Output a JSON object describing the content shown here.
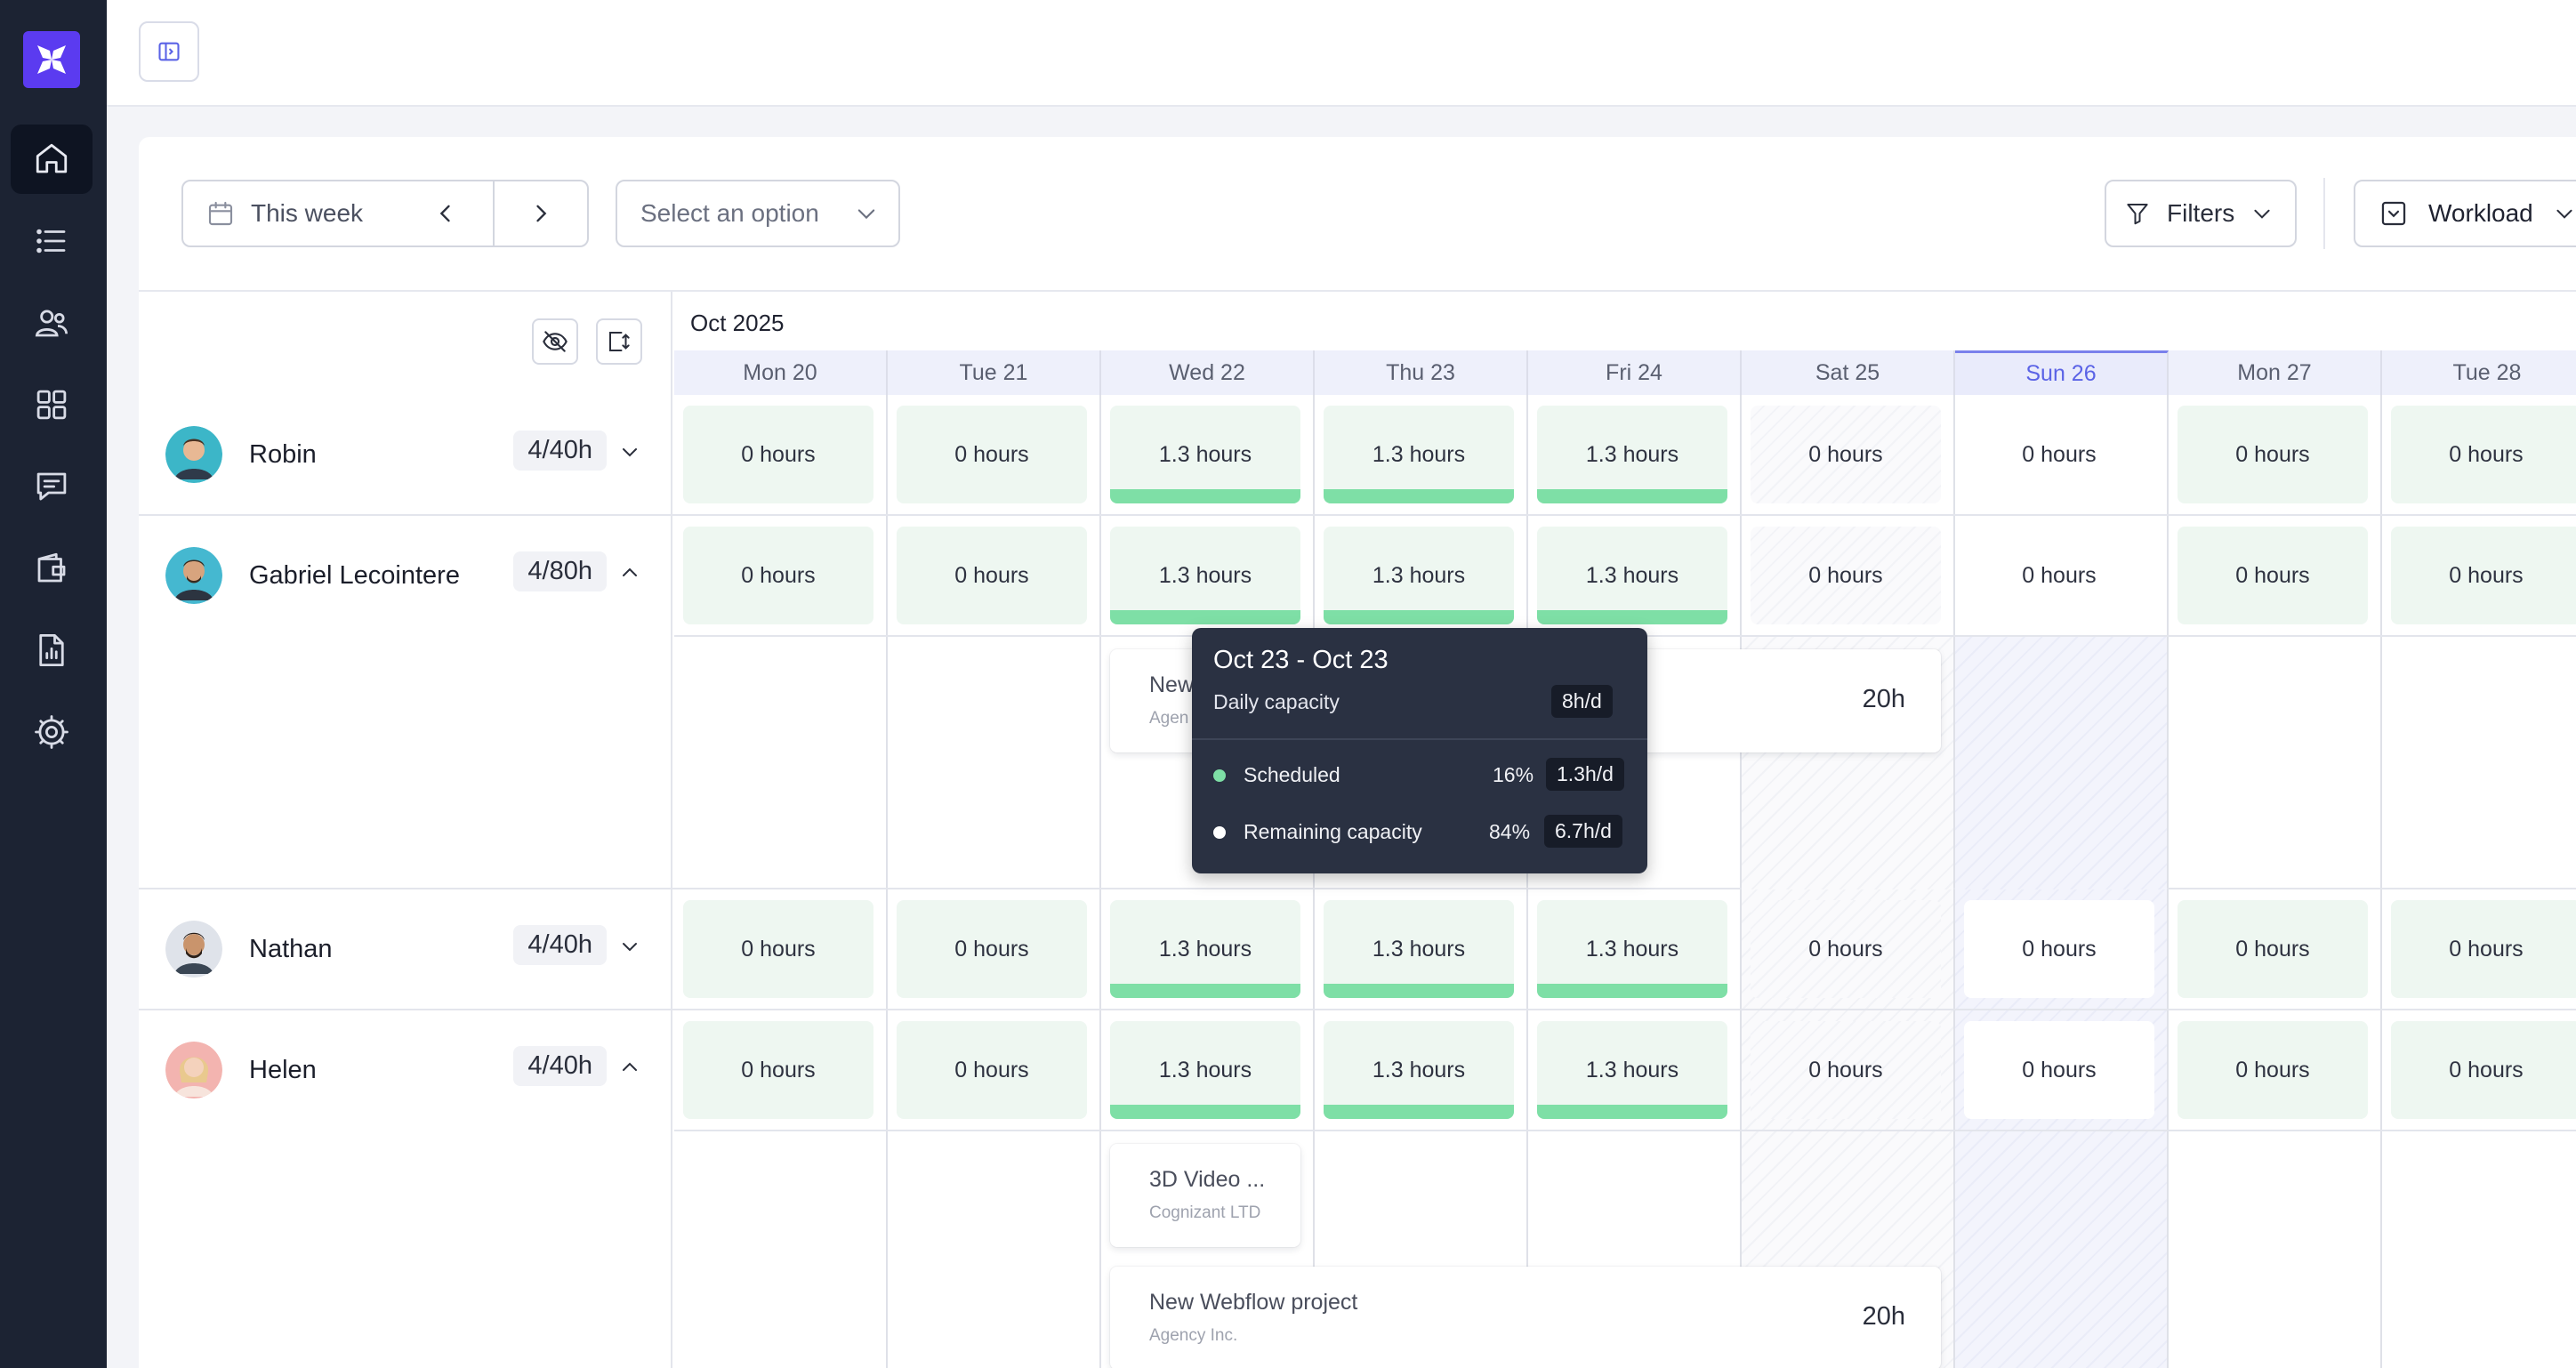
{
  "nav": {
    "items": [
      "home",
      "list",
      "users",
      "grid",
      "messages",
      "wallet",
      "reports",
      "settings"
    ]
  },
  "toolbar": {
    "week_label": "This week",
    "select_placeholder": "Select an option",
    "filters_label": "Filters",
    "view_label": "Workload"
  },
  "calendar": {
    "month": "Oct 2025",
    "days": [
      "Mon 20",
      "Tue 21",
      "Wed 22",
      "Thu 23",
      "Fri 24",
      "Sat 25",
      "Sun 26",
      "Mon 27",
      "Tue 28"
    ],
    "today_index": 6
  },
  "people": [
    {
      "name": "Robin",
      "capacity": "4/40h",
      "expanded": false,
      "cells": [
        "0 hours",
        "0 hours",
        "1.3 hours",
        "1.3 hours",
        "1.3 hours",
        "0 hours",
        "0 hours",
        "0 hours",
        "0 hours"
      ]
    },
    {
      "name": "Gabriel Lecointere",
      "capacity": "4/80h",
      "expanded": true,
      "cells": [
        "0 hours",
        "0 hours",
        "1.3 hours",
        "1.3 hours",
        "1.3 hours",
        "0 hours",
        "0 hours",
        "0 hours",
        "0 hours"
      ]
    },
    {
      "name": "Nathan",
      "capacity": "4/40h",
      "expanded": false,
      "cells": [
        "0 hours",
        "0 hours",
        "1.3 hours",
        "1.3 hours",
        "1.3 hours",
        "0 hours",
        "0 hours",
        "0 hours",
        "0 hours"
      ]
    },
    {
      "name": "Helen",
      "capacity": "4/40h",
      "expanded": true,
      "cells": [
        "0 hours",
        "0 hours",
        "1.3 hours",
        "1.3 hours",
        "1.3 hours",
        "0 hours",
        "0 hours",
        "0 hours",
        "0 hours"
      ]
    }
  ],
  "tasks": {
    "gabriel_task": {
      "name": "New",
      "client": "Agen",
      "hours": "20h"
    },
    "helen_task1": {
      "name": "3D Video ...",
      "client": "Cognizant LTD"
    },
    "helen_task2": {
      "name": "New Webflow project",
      "client": "Agency Inc.",
      "hours": "20h"
    }
  },
  "tooltip": {
    "title": "Oct 23 - Oct 23",
    "capacity_label": "Daily capacity",
    "capacity_value": "8h/d",
    "scheduled_label": "Scheduled",
    "scheduled_pct": "16%",
    "scheduled_value": "1.3h/d",
    "remaining_label": "Remaining capacity",
    "remaining_pct": "84%",
    "remaining_value": "6.7h/d"
  },
  "colors": {
    "accent": "#5b3bf0",
    "sidebar": "#1c2333",
    "scheduled": "#7edfa6",
    "today": "#5b63e6"
  }
}
